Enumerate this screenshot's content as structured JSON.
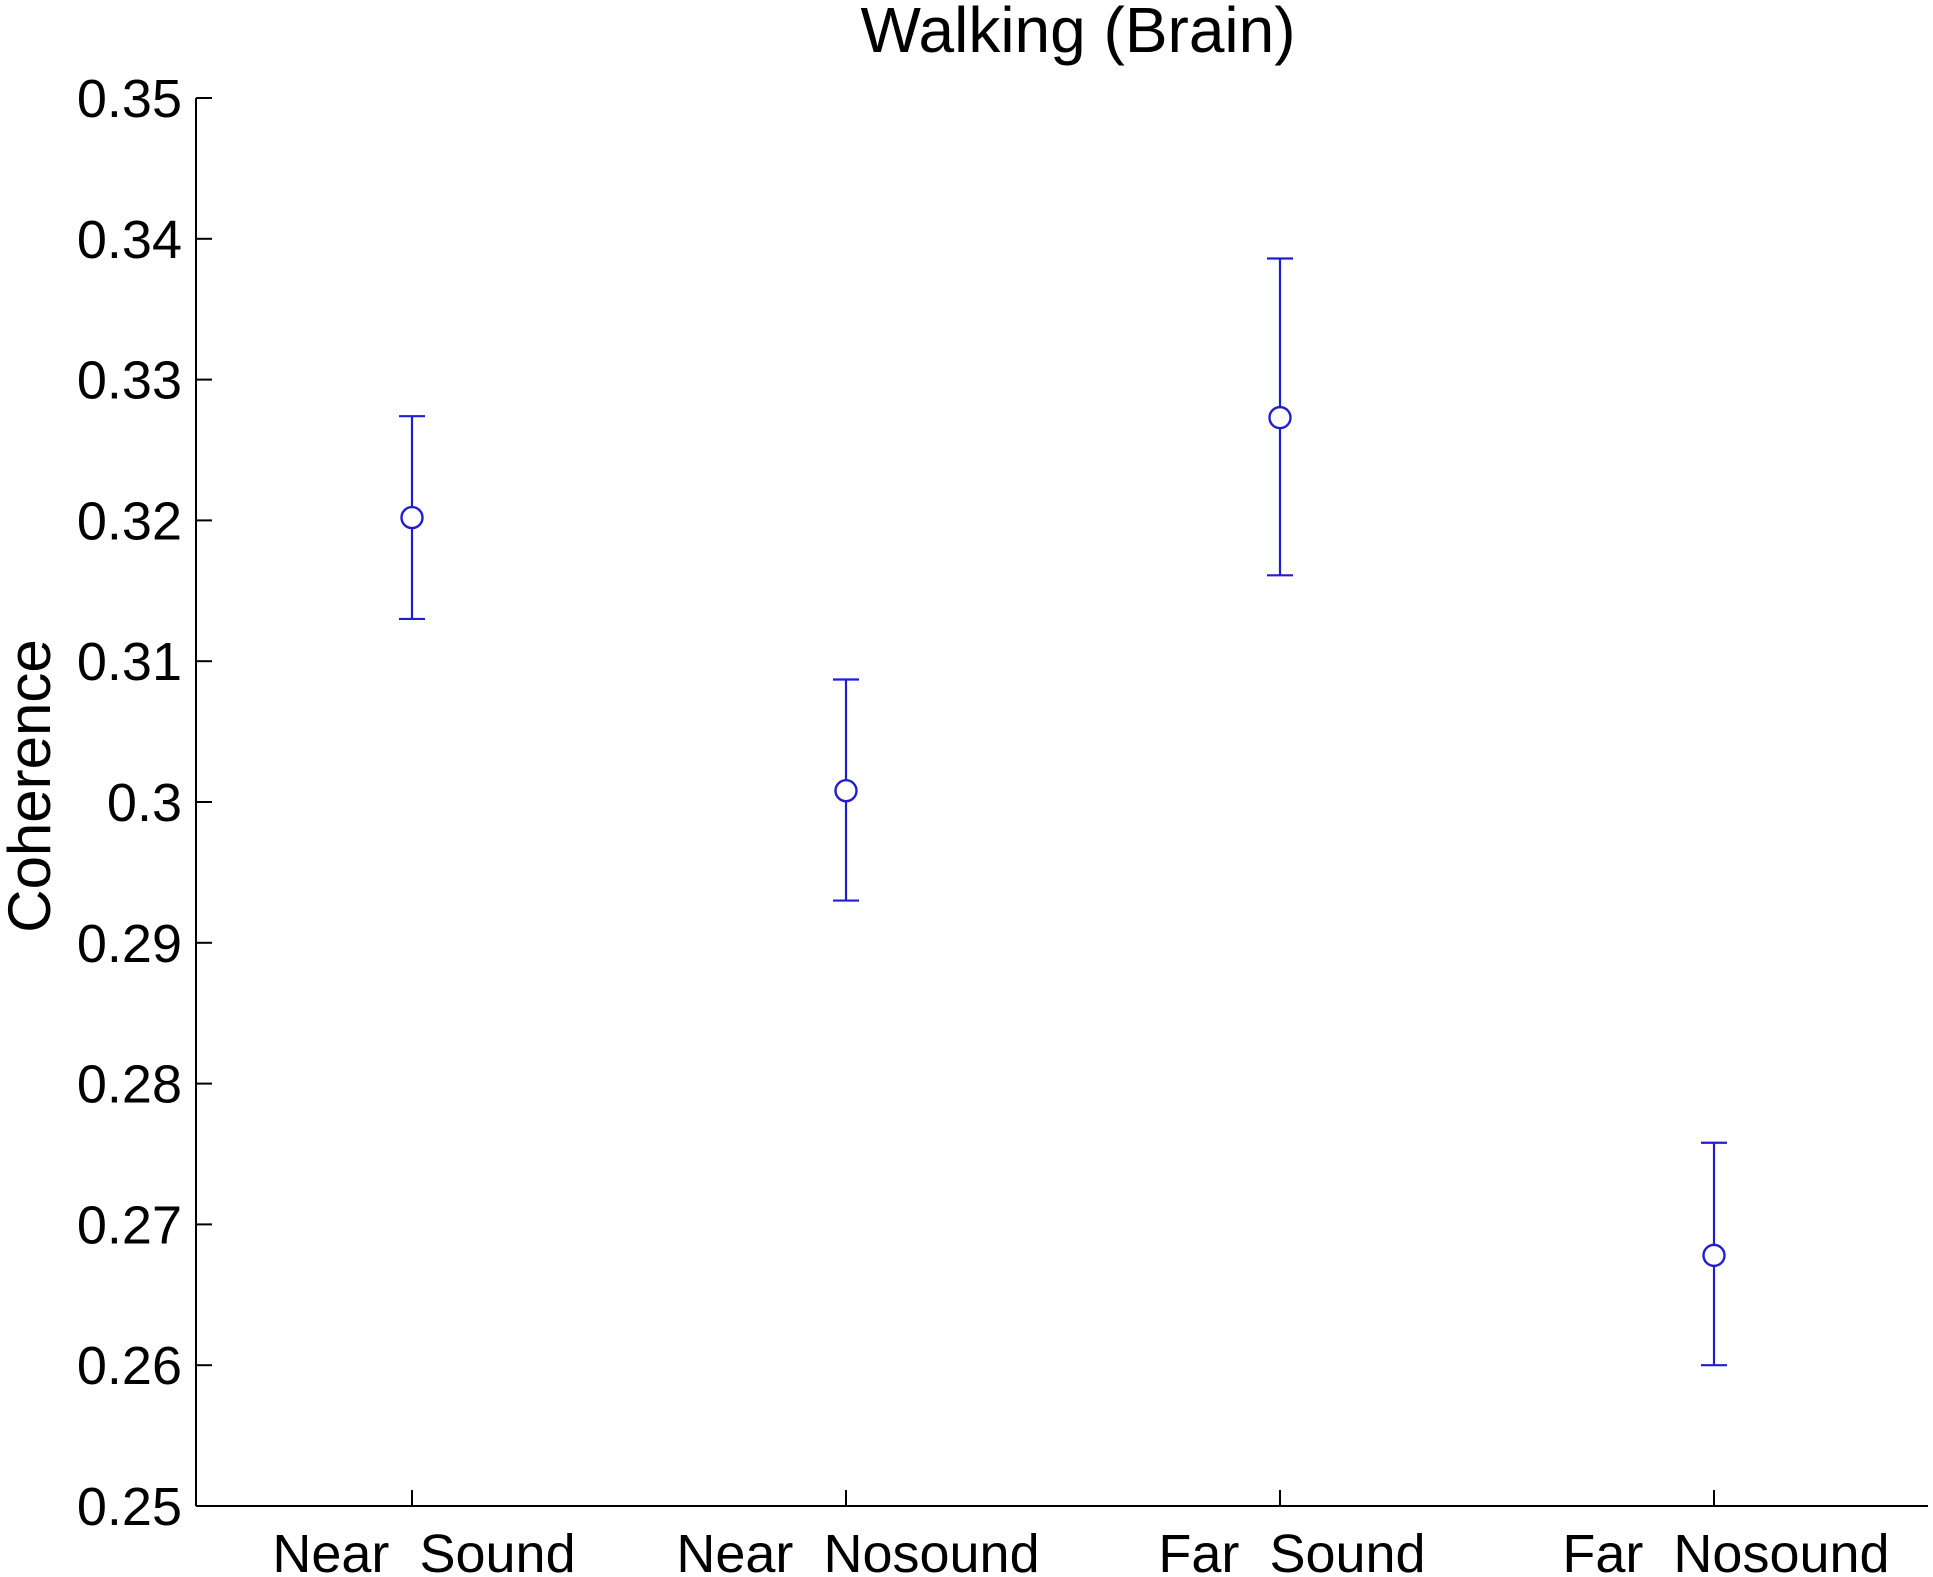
{
  "chart_data": {
    "type": "scatter",
    "title": "Walking (Brain)",
    "xlabel": "",
    "ylabel": "Coherence",
    "categories": [
      "Near_Sound",
      "Near_Nosound",
      "Far_Sound",
      "Far_Nosound"
    ],
    "series": [
      {
        "values": [
          0.3202,
          0.3008,
          0.3273,
          0.2678
        ],
        "error_lower": [
          0.313,
          0.293,
          0.3161,
          0.26
        ],
        "error_upper": [
          0.3274,
          0.3087,
          0.3386,
          0.2758
        ],
        "color": "#1f1fd0"
      }
    ],
    "ylim": [
      0.25,
      0.35
    ],
    "yticks": [
      0.25,
      0.26,
      0.27,
      0.28,
      0.29,
      0.3,
      0.31,
      0.32,
      0.33,
      0.34,
      0.35
    ],
    "ytick_labels": [
      "0.25",
      "0.26",
      "0.27",
      "0.28",
      "0.29",
      "0.3",
      "0.31",
      "0.32",
      "0.33",
      "0.34",
      "0.35"
    ],
    "grid": false,
    "legend": "none",
    "marker": "open-circle"
  }
}
